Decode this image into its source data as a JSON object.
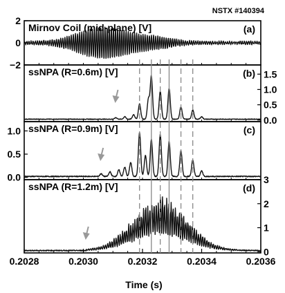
{
  "header": {
    "shot": "NSTX  #140394"
  },
  "chart_data": {
    "type": "line",
    "xlabel": "Time  (s)",
    "xlim": [
      0.2028,
      0.2036
    ],
    "xticks": [
      "0.2028",
      "0.2030",
      "0.2032",
      "0.2034",
      "0.2036"
    ],
    "xtick_values": [
      0.2028,
      0.203,
      0.2032,
      0.2034,
      0.2036
    ],
    "burst_times": [
      0.20319,
      0.20323,
      0.20326,
      0.20329,
      0.20333,
      0.20337
    ],
    "burst_line_styles": [
      "dashed",
      "solid",
      "dashed",
      "solid",
      "dashed",
      "dashed"
    ],
    "panels": [
      {
        "title": "Mirnov Coil (mid-plane) [V]",
        "letter": "(a)",
        "axis": "left",
        "ylim": [
          -2,
          2
        ],
        "yticks": [
          "2",
          "0",
          "−2"
        ],
        "ytick_values": [
          2,
          0,
          -2
        ],
        "signal": {
          "kind": "mirnov",
          "freq_cycles_per_s": 140000,
          "peak_amplitude": 1.3,
          "peak_time": 0.20307
        }
      },
      {
        "title": "ssNPA (R=0.6m) [V]",
        "letter": "(b)",
        "axis": "right",
        "ylim": [
          -0.05,
          1.8
        ],
        "yticks": [
          "1.5",
          "1.0",
          "0.5",
          "0.0"
        ],
        "ytick_values": [
          1.5,
          1.0,
          0.5,
          0.0
        ],
        "arrow_time": 0.20311,
        "signal": {
          "kind": "spikes",
          "baseline": 0.03,
          "peaks": [
            [
              0.20311,
              0.05
            ],
            [
              0.20314,
              0.08
            ],
            [
              0.20317,
              0.15
            ],
            [
              0.20319,
              0.5
            ],
            [
              0.20322,
              0.65
            ],
            [
              0.20323,
              1.4
            ],
            [
              0.20326,
              0.9
            ],
            [
              0.20329,
              1.0
            ],
            [
              0.20333,
              0.4
            ],
            [
              0.20337,
              0.3
            ],
            [
              0.2034,
              0.08
            ]
          ]
        }
      },
      {
        "title": "ssNPA (R=0.9m) [V]",
        "letter": "(c)",
        "axis": "left",
        "ylim": [
          -0.05,
          1.2
        ],
        "yticks": [
          "1.0",
          "0.5",
          "0.0"
        ],
        "ytick_values": [
          1.0,
          0.5,
          0.0
        ],
        "arrow_time": 0.20306,
        "signal": {
          "kind": "spikes",
          "baseline": 0.02,
          "peaks": [
            [
              0.20306,
              0.06
            ],
            [
              0.20309,
              0.1
            ],
            [
              0.20312,
              0.14
            ],
            [
              0.20314,
              0.2
            ],
            [
              0.20316,
              0.3
            ],
            [
              0.20319,
              0.95
            ],
            [
              0.20321,
              0.45
            ],
            [
              0.20323,
              0.8
            ],
            [
              0.20326,
              0.9
            ],
            [
              0.20329,
              0.75
            ],
            [
              0.20333,
              0.55
            ],
            [
              0.20337,
              0.35
            ],
            [
              0.2034,
              0.12
            ]
          ]
        }
      },
      {
        "title": "ssNPA (R=1.2m) [V]",
        "letter": "(d)",
        "axis": "right",
        "ylim": [
          -0.05,
          3
        ],
        "yticks": [
          "3",
          "2",
          "1",
          "0"
        ],
        "ytick_values": [
          3,
          2,
          1,
          0
        ],
        "arrow_time": 0.20301,
        "signal": {
          "kind": "dense",
          "baseline": 0.05,
          "envelope_peak": 2.0,
          "envelope_center": 0.20326,
          "arrow_time": 0.20301
        }
      }
    ]
  }
}
